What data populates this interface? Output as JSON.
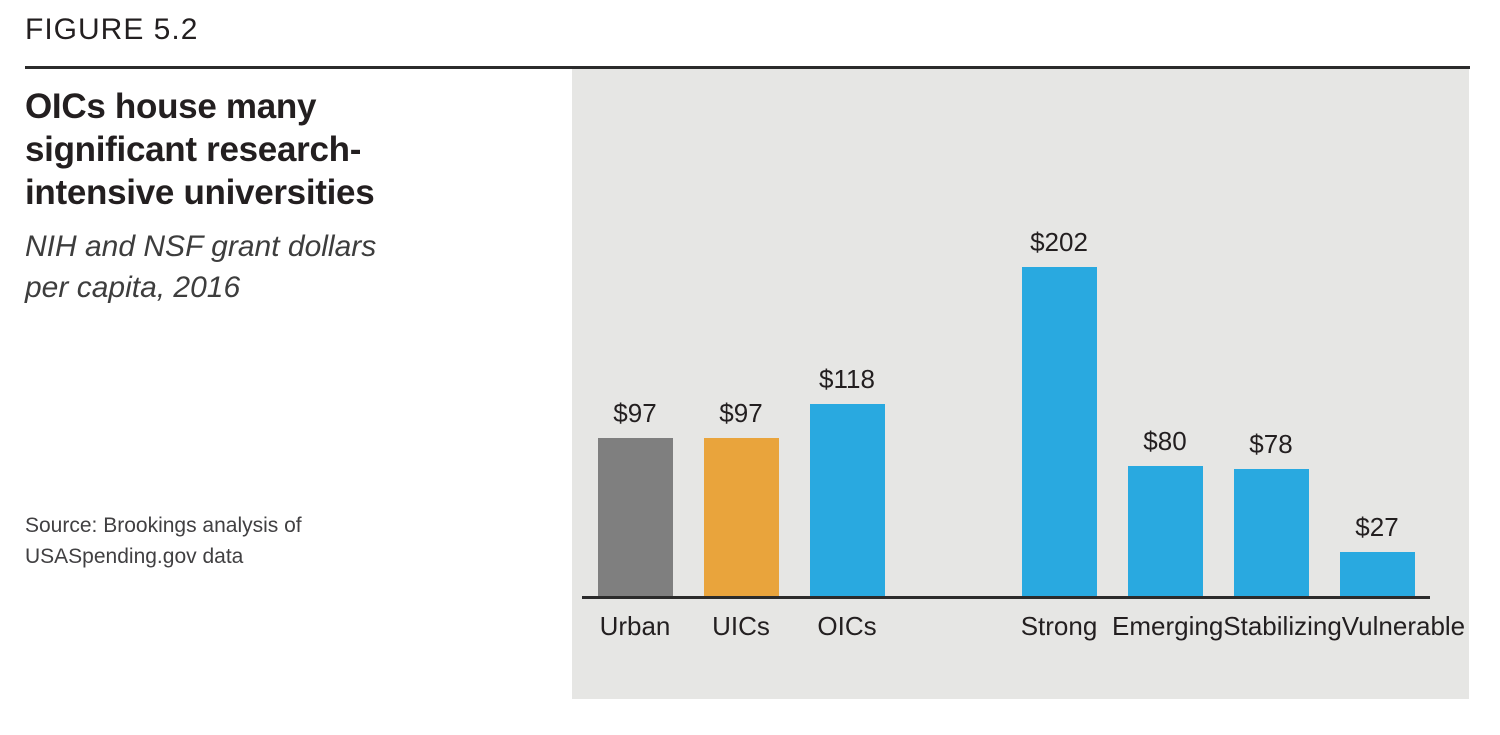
{
  "figure": {
    "label": "FIGURE 5.2",
    "title": "OICs house many\nsignificant research-\nintensive universities",
    "subtitle": "NIH and NSF grant dollars\nper capita, 2016",
    "source": "Source: Brookings analysis of\nUSASpending.gov data"
  },
  "colors": {
    "accent_blue": "#29A9E0",
    "accent_gold": "#E9A43C",
    "neutral_gray": "#7F7F7F",
    "panel_background": "#E6E6E4",
    "text": "#231F20",
    "axis": "#2b2b2b"
  },
  "chart_data": {
    "type": "bar",
    "title": "OICs house many significant research-intensive universities",
    "subtitle": "NIH and NSF grant dollars per capita, 2016",
    "categories": [
      "Urban",
      "UICs",
      "OICs",
      "Strong",
      "Emerging",
      "Stabilizing",
      "Vulnerable"
    ],
    "values": [
      97,
      97,
      118,
      202,
      80,
      78,
      27
    ],
    "value_labels": [
      "$97",
      "$97",
      "$118",
      "$202",
      "$80",
      "$78",
      "$27"
    ],
    "bar_colors": [
      "#7F7F7F",
      "#E9A43C",
      "#29A9E0",
      "#29A9E0",
      "#29A9E0",
      "#29A9E0",
      "#29A9E0"
    ],
    "ylim": [
      0,
      210
    ],
    "gap_after_index": 2,
    "gridlines": false,
    "legend": false,
    "value_label_position": "above-bars",
    "source": "Source: Brookings analysis of USASpending.gov data"
  }
}
